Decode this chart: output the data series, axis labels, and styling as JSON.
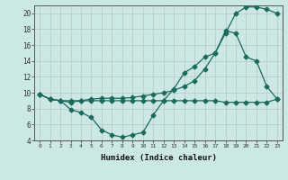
{
  "xlabel": "Humidex (Indice chaleur)",
  "ylabel": "",
  "bg_color": "#cce8e4",
  "grid_color": "#b0b0b0",
  "line_color": "#1a6b5e",
  "xlim": [
    -0.5,
    23.5
  ],
  "ylim": [
    4,
    21
  ],
  "yticks": [
    4,
    6,
    8,
    10,
    12,
    14,
    16,
    18,
    20
  ],
  "xticks": [
    0,
    1,
    2,
    3,
    4,
    5,
    6,
    7,
    8,
    9,
    10,
    11,
    12,
    13,
    14,
    15,
    16,
    17,
    18,
    19,
    20,
    21,
    22,
    23
  ],
  "line1_x": [
    0,
    1,
    2,
    3,
    4,
    5,
    6,
    7,
    8,
    9,
    10,
    11,
    12,
    13,
    14,
    15,
    16,
    17,
    18,
    19,
    20,
    21,
    22,
    23
  ],
  "line1_y": [
    9.8,
    9.2,
    9.0,
    8.8,
    9.0,
    9.2,
    9.3,
    9.3,
    9.3,
    9.4,
    9.6,
    9.8,
    10.0,
    10.3,
    10.8,
    11.5,
    13.0,
    15.0,
    17.5,
    20.0,
    20.8,
    20.8,
    20.5,
    20.0
  ],
  "line2_x": [
    0,
    1,
    2,
    3,
    4,
    5,
    6,
    7,
    8,
    9,
    10,
    11,
    12,
    13,
    14,
    15,
    16,
    17,
    18,
    19,
    20,
    21,
    22,
    23
  ],
  "line2_y": [
    9.8,
    9.2,
    9.0,
    7.9,
    7.5,
    6.9,
    5.3,
    4.7,
    4.4,
    4.7,
    5.0,
    7.2,
    9.0,
    10.5,
    12.5,
    13.3,
    14.5,
    15.0,
    17.8,
    17.5,
    14.5,
    14.0,
    10.8,
    9.2
  ],
  "line3_x": [
    0,
    1,
    2,
    3,
    4,
    5,
    6,
    7,
    8,
    9,
    10,
    11,
    12,
    13,
    14,
    15,
    16,
    17,
    18,
    19,
    20,
    21,
    22,
    23
  ],
  "line3_y": [
    9.8,
    9.2,
    9.0,
    9.0,
    9.0,
    9.0,
    9.0,
    9.0,
    9.0,
    9.0,
    9.0,
    9.0,
    9.0,
    9.0,
    9.0,
    9.0,
    9.0,
    9.0,
    8.8,
    8.8,
    8.8,
    8.8,
    8.8,
    9.2
  ]
}
